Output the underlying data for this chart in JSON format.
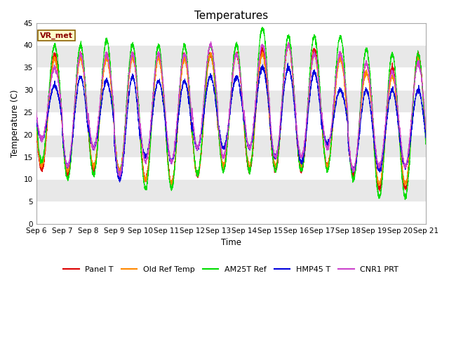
{
  "title": "Temperatures",
  "xlabel": "Time",
  "ylabel": "Temperature (C)",
  "ylim": [
    0,
    45
  ],
  "site_label": "VR_met",
  "series": {
    "Panel T": {
      "color": "#dd0000",
      "lw": 0.8
    },
    "Old Ref Temp": {
      "color": "#ff8800",
      "lw": 0.8
    },
    "AM25T Ref": {
      "color": "#00dd00",
      "lw": 0.8
    },
    "HMP45 T": {
      "color": "#0000dd",
      "lw": 0.8
    },
    "CNR1 PRT": {
      "color": "#cc44cc",
      "lw": 0.8
    }
  },
  "x_tick_labels": [
    "Sep 6",
    "Sep 7",
    "Sep 8",
    "Sep 9",
    "Sep 10",
    "Sep 11",
    "Sep 12",
    "Sep 13",
    "Sep 14",
    "Sep 15",
    "Sep 16",
    "Sep 17",
    "Sep 18",
    "Sep 19",
    "Sep 20",
    "Sep 21"
  ],
  "fig_bg": "#ffffff",
  "plot_bg": "#e8e8e8",
  "white_band_alpha": 1.0,
  "title_fontsize": 11,
  "tick_fontsize": 7.5,
  "label_fontsize": 8.5,
  "legend_fontsize": 8
}
